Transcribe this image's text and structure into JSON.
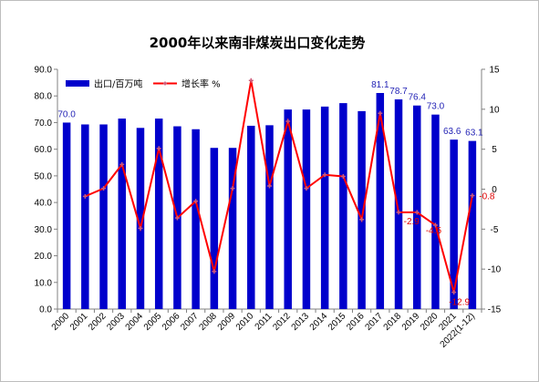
{
  "chart_data": {
    "type": "bar",
    "title": "2000年以来南非煤炭出口变化走势",
    "categories": [
      "2000",
      "2001",
      "2002",
      "2003",
      "2004",
      "2005",
      "2006",
      "2007",
      "2008",
      "2009",
      "2010",
      "2011",
      "2012",
      "2013",
      "2014",
      "2015",
      "2016",
      "2017",
      "2018",
      "2019",
      "2020",
      "2021",
      "2022(1-12)"
    ],
    "series": [
      {
        "name": "出口/百万吨",
        "type": "bar",
        "axis": "left",
        "color": "#0000cc",
        "values": [
          70.0,
          69.3,
          69.3,
          71.5,
          68.0,
          71.5,
          68.6,
          67.5,
          60.5,
          60.5,
          68.8,
          69.0,
          74.9,
          74.9,
          76.0,
          77.3,
          74.3,
          81.1,
          78.7,
          76.4,
          73.0,
          63.6,
          63.1
        ]
      },
      {
        "name": "增长率 %",
        "type": "line",
        "axis": "right",
        "color": "#ff0000",
        "values": [
          null,
          -0.9,
          0.1,
          3.1,
          -4.9,
          5.1,
          -3.6,
          -1.5,
          -10.3,
          0.1,
          13.6,
          0.4,
          8.5,
          0.1,
          1.8,
          1.6,
          -3.8,
          9.5,
          -2.9,
          -2.9,
          -4.5,
          -12.9,
          -0.8
        ]
      }
    ],
    "bar_labels": [
      {
        "index": 0,
        "text": "70.0"
      },
      {
        "index": 17,
        "text": "81.1"
      },
      {
        "index": 18,
        "text": "78.7"
      },
      {
        "index": 19,
        "text": "76.4"
      },
      {
        "index": 20,
        "text": "73.0"
      },
      {
        "index": 21,
        "text": "63.6"
      },
      {
        "index": 22,
        "text": "63.1"
      }
    ],
    "line_labels": [
      {
        "index": 19,
        "text": "-2.9"
      },
      {
        "index": 20,
        "text": "-4.5"
      },
      {
        "index": 21,
        "text": "-12.9"
      },
      {
        "index": 22,
        "text": "-0.8"
      }
    ],
    "ylim_left": [
      0,
      90
    ],
    "yticks_left": [
      "0.0",
      "10.0",
      "20.0",
      "30.0",
      "40.0",
      "50.0",
      "60.0",
      "70.0",
      "80.0",
      "90.0"
    ],
    "ylim_right": [
      -15,
      15
    ],
    "yticks_right": [
      "-15",
      "-10",
      "-5",
      "0",
      "5",
      "10",
      "15"
    ],
    "legend_position": "top-left",
    "grid": false,
    "xlabel": "",
    "ylabel": ""
  }
}
